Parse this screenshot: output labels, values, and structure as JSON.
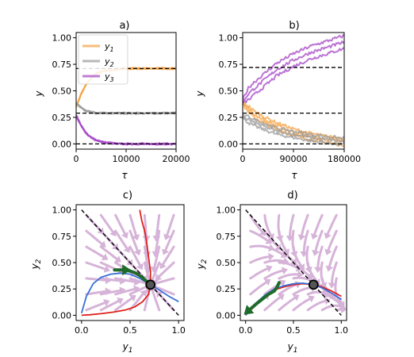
{
  "colors": {
    "y1": "#f5a142",
    "y2": "#999999",
    "y3": "#a646c6",
    "stream": "#d6b3d8",
    "ref": "#000000",
    "red": "#e0201b",
    "blue": "#3a6fd8",
    "green": "#1f6b2a"
  },
  "chart_data": [
    {
      "panel": "a)",
      "type": "line",
      "title": "a)",
      "xlabel": "τ",
      "ylabel": "y",
      "xlim": [
        0,
        20000
      ],
      "ylim": [
        0,
        1
      ],
      "xticks": [
        0,
        10000,
        20000
      ],
      "yticks": [
        0.0,
        0.25,
        0.5,
        0.75,
        1.0
      ],
      "xticklabels": [
        "0",
        "10000",
        "20000"
      ],
      "yticklabels": [
        "0.00",
        "0.25",
        "0.50",
        "0.75",
        "1.00"
      ],
      "reference_lines": [
        0.0,
        0.29,
        0.71
      ],
      "legend": {
        "position": "upper-left",
        "entries": [
          "y1",
          "y2",
          "y3"
        ]
      },
      "series": [
        {
          "name": "y1",
          "color_key": "y1",
          "x": [
            0,
            1000,
            2000,
            3000,
            4000,
            5000,
            6000,
            8000,
            10000,
            13000,
            16000,
            20000
          ],
          "y": [
            0.35,
            0.47,
            0.56,
            0.62,
            0.66,
            0.68,
            0.69,
            0.7,
            0.71,
            0.71,
            0.71,
            0.71
          ]
        },
        {
          "name": "y2",
          "color_key": "y2",
          "x": [
            0,
            1000,
            2000,
            3000,
            4000,
            5000,
            6000,
            8000,
            10000,
            13000,
            16000,
            20000
          ],
          "y": [
            0.38,
            0.34,
            0.31,
            0.3,
            0.29,
            0.29,
            0.29,
            0.29,
            0.29,
            0.29,
            0.29,
            0.29
          ]
        },
        {
          "name": "y3",
          "color_key": "y3",
          "x": [
            0,
            1000,
            2000,
            3000,
            4000,
            5000,
            6000,
            8000,
            10000,
            13000,
            16000,
            20000
          ],
          "y": [
            0.27,
            0.17,
            0.1,
            0.06,
            0.035,
            0.02,
            0.01,
            0.005,
            0.0,
            0.0,
            0.0,
            0.0
          ]
        }
      ]
    },
    {
      "panel": "b)",
      "type": "line",
      "title": "b)",
      "xlabel": "τ",
      "ylabel": "y",
      "xlim": [
        0,
        180000
      ],
      "ylim": [
        0,
        1
      ],
      "xticks": [
        0,
        90000,
        180000
      ],
      "yticks": [
        0.0,
        0.25,
        0.5,
        0.75,
        1.0
      ],
      "xticklabels": [
        "0",
        "90000",
        "180000"
      ],
      "yticklabels": [
        "0.00",
        "0.25",
        "0.50",
        "0.75",
        "1.00"
      ],
      "reference_lines": [
        0.0,
        0.29,
        0.72
      ],
      "series": [
        {
          "name": "y1",
          "color_key": "y1",
          "x": [
            0,
            10000,
            20000,
            40000,
            60000,
            90000,
            120000,
            150000,
            180000
          ],
          "y": [
            0.38,
            0.33,
            0.28,
            0.22,
            0.17,
            0.11,
            0.07,
            0.04,
            0.02
          ]
        },
        {
          "name": "y2",
          "color_key": "y2",
          "x": [
            0,
            10000,
            20000,
            40000,
            60000,
            90000,
            120000,
            150000,
            180000
          ],
          "y": [
            0.25,
            0.23,
            0.2,
            0.16,
            0.12,
            0.09,
            0.06,
            0.04,
            0.02
          ]
        },
        {
          "name": "y3",
          "color_key": "y3",
          "x": [
            0,
            10000,
            20000,
            40000,
            60000,
            90000,
            120000,
            150000,
            180000
          ],
          "y": [
            0.4,
            0.47,
            0.52,
            0.61,
            0.7,
            0.79,
            0.86,
            0.91,
            0.96
          ]
        }
      ]
    },
    {
      "panel": "c)",
      "type": "phase-portrait",
      "title": "c)",
      "xlabel": "y1",
      "ylabel": "y2",
      "xlim": [
        0,
        1
      ],
      "ylim": [
        0,
        1
      ],
      "xticks": [
        0.0,
        0.5,
        1.0
      ],
      "yticks": [
        0.0,
        0.25,
        0.5,
        0.75,
        1.0
      ],
      "xticklabels": [
        "0.0",
        "0.5",
        "1.0"
      ],
      "yticklabels": [
        "0.00",
        "0.25",
        "0.50",
        "0.75",
        "1.00"
      ],
      "diagonal": [
        [
          0,
          1
        ],
        [
          1,
          0
        ]
      ],
      "fixed_point": [
        0.71,
        0.29
      ],
      "red_curve": {
        "x": [
          0.6,
          0.62,
          0.65,
          0.67,
          0.69,
          0.71,
          0.71,
          0.69,
          0.63,
          0.55,
          0.45,
          0.33,
          0.2,
          0.08,
          0.0
        ],
        "y": [
          1.0,
          0.9,
          0.8,
          0.7,
          0.55,
          0.42,
          0.29,
          0.2,
          0.13,
          0.08,
          0.05,
          0.03,
          0.015,
          0.005,
          0.0
        ]
      },
      "blue_curve": {
        "x": [
          0.0,
          0.05,
          0.12,
          0.2,
          0.3,
          0.4,
          0.5,
          0.6,
          0.71,
          0.8,
          0.9,
          1.0
        ],
        "y": [
          0.02,
          0.18,
          0.3,
          0.36,
          0.39,
          0.4,
          0.39,
          0.35,
          0.29,
          0.24,
          0.18,
          0.13
        ]
      },
      "trajectory": {
        "x": [
          0.34,
          0.42,
          0.5,
          0.56,
          0.61,
          0.66,
          0.71
        ],
        "y": [
          0.43,
          0.43,
          0.42,
          0.4,
          0.37,
          0.33,
          0.29
        ]
      }
    },
    {
      "panel": "d)",
      "type": "phase-portrait",
      "title": "d)",
      "xlabel": "y1",
      "ylabel": "y2",
      "xlim": [
        0,
        1
      ],
      "ylim": [
        0,
        1
      ],
      "xticks": [
        0.0,
        0.5,
        1.0
      ],
      "yticks": [
        0.0,
        0.25,
        0.5,
        0.75,
        1.0
      ],
      "xticklabels": [
        "0.0",
        "0.5",
        "1.0"
      ],
      "yticklabels": [
        "0.00",
        "0.25",
        "0.50",
        "0.75",
        "1.00"
      ],
      "diagonal": [
        [
          0,
          1
        ],
        [
          1,
          0
        ]
      ],
      "fixed_point": [
        0.71,
        0.29
      ],
      "red_curve": {
        "x": [
          0.0,
          0.1,
          0.2,
          0.3,
          0.4,
          0.5,
          0.6,
          0.71,
          0.8,
          0.9,
          1.0
        ],
        "y": [
          0.0,
          0.1,
          0.18,
          0.24,
          0.27,
          0.29,
          0.3,
          0.29,
          0.27,
          0.23,
          0.18
        ]
      },
      "blue_curve": {
        "x": [
          0.0,
          0.1,
          0.2,
          0.3,
          0.4,
          0.5,
          0.6,
          0.71,
          0.8,
          0.9,
          1.0
        ],
        "y": [
          0.0,
          0.11,
          0.19,
          0.25,
          0.28,
          0.3,
          0.305,
          0.29,
          0.26,
          0.21,
          0.15
        ]
      },
      "trajectory": {
        "x": [
          0.05,
          0.1,
          0.17,
          0.24,
          0.3,
          0.33,
          0.35
        ],
        "y": [
          0.06,
          0.1,
          0.15,
          0.2,
          0.23,
          0.27,
          0.31
        ]
      }
    }
  ]
}
